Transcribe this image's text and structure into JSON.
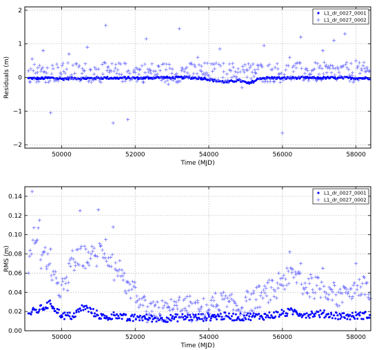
{
  "chart_data": [
    {
      "type": "scatter",
      "xlabel": "Time (MJD)",
      "ylabel": "Residuals (m)",
      "xlim": [
        49000,
        58400
      ],
      "ylim": [
        -2.1,
        2.1
      ],
      "x_ticks": [
        50000,
        52000,
        54000,
        56000,
        58000
      ],
      "x_tick_labels": [
        "50000",
        "52000",
        "54000",
        "56000",
        "58000"
      ],
      "y_ticks": [
        -2,
        -1,
        0,
        1,
        2
      ],
      "y_tick_labels": [
        "−2",
        "−1",
        "0",
        "1",
        "2"
      ],
      "grid": true,
      "legend_position": "top-right",
      "series": [
        {
          "name": "L1_dr_0027_0001",
          "marker": "dot",
          "color": "#0000ff",
          "x": [
            49100,
            49400,
            49700,
            50000,
            50300,
            50600,
            50900,
            51200,
            51500,
            51800,
            52100,
            52400,
            52700,
            53000,
            53300,
            53600,
            53900,
            54200,
            54500,
            54800,
            55100,
            55400,
            55700,
            56000,
            56300,
            56600,
            56900,
            57200,
            57500,
            57800,
            58100
          ],
          "y": [
            -0.02,
            -0.03,
            -0.01,
            -0.04,
            -0.02,
            -0.03,
            -0.02,
            -0.01,
            -0.02,
            -0.01,
            -0.02,
            -0.01,
            0.0,
            -0.01,
            0.0,
            -0.01,
            -0.03,
            -0.1,
            -0.14,
            -0.08,
            -0.18,
            -0.02,
            -0.01,
            -0.02,
            -0.01,
            -0.01,
            -0.02,
            -0.01,
            -0.02,
            -0.01,
            -0.02
          ]
        },
        {
          "name": "L1_dr_0027_0002",
          "marker": "plus",
          "color": "#6666ff",
          "x": [
            49100,
            49200,
            49500,
            49700,
            49900,
            50200,
            50500,
            50700,
            51000,
            51200,
            51400,
            51600,
            51800,
            52000,
            52300,
            52600,
            52900,
            53200,
            53400,
            53700,
            54000,
            54300,
            54600,
            54900,
            55200,
            55500,
            55800,
            56000,
            56200,
            56500,
            56800,
            57100,
            57400,
            57700,
            58000,
            58300
          ],
          "y": [
            0.2,
            0.55,
            0.8,
            -1.05,
            0.3,
            0.7,
            -0.1,
            0.9,
            0.25,
            1.55,
            -1.35,
            0.4,
            -1.25,
            0.15,
            1.15,
            0.1,
            -0.2,
            1.45,
            0.3,
            0.6,
            0.05,
            0.85,
            0.2,
            -0.3,
            0.4,
            0.95,
            0.3,
            -1.65,
            0.6,
            1.2,
            0.2,
            0.8,
            1.1,
            1.3,
            0.5,
            0.3
          ]
        }
      ]
    },
    {
      "type": "scatter",
      "xlabel": "Time (MJD)",
      "ylabel": "RMS (m)",
      "xlim": [
        49000,
        58400
      ],
      "ylim": [
        0.0,
        0.15
      ],
      "x_ticks": [
        50000,
        52000,
        54000,
        56000,
        58000
      ],
      "x_tick_labels": [
        "50000",
        "52000",
        "54000",
        "56000",
        "58000"
      ],
      "y_ticks": [
        0.0,
        0.02,
        0.04,
        0.06,
        0.08,
        0.1,
        0.12,
        0.14
      ],
      "y_tick_labels": [
        "0.00",
        "0.02",
        "0.04",
        "0.06",
        "0.08",
        "0.10",
        "0.12",
        "0.14"
      ],
      "grid": true,
      "legend_position": "top-right",
      "series": [
        {
          "name": "L1_dr_0027_0001",
          "marker": "dot",
          "color": "#0000ff",
          "x": [
            49100,
            49400,
            49700,
            50000,
            50300,
            50600,
            50900,
            51200,
            51500,
            51800,
            52100,
            52400,
            52700,
            53000,
            53300,
            53600,
            53900,
            54200,
            54500,
            54800,
            55100,
            55400,
            55700,
            56000,
            56300,
            56600,
            56900,
            57200,
            57500,
            57800,
            58100
          ],
          "y": [
            0.018,
            0.022,
            0.028,
            0.016,
            0.015,
            0.025,
            0.018,
            0.013,
            0.017,
            0.012,
            0.014,
            0.013,
            0.013,
            0.013,
            0.014,
            0.014,
            0.014,
            0.015,
            0.015,
            0.014,
            0.015,
            0.015,
            0.016,
            0.018,
            0.02,
            0.017,
            0.018,
            0.017,
            0.016,
            0.015,
            0.016
          ]
        },
        {
          "name": "L1_dr_0027_0002",
          "marker": "plus",
          "color": "#6666ff",
          "x": [
            49100,
            49200,
            49400,
            49700,
            49900,
            50200,
            50500,
            50800,
            51000,
            51200,
            51400,
            51700,
            52000,
            52300,
            52600,
            52900,
            53200,
            53500,
            53800,
            54100,
            54400,
            54700,
            55000,
            55300,
            55600,
            55900,
            56200,
            56500,
            56800,
            57100,
            57400,
            57700,
            58000,
            58300
          ],
          "y": [
            0.06,
            0.145,
            0.115,
            0.085,
            0.05,
            0.07,
            0.125,
            0.08,
            0.126,
            0.095,
            0.108,
            0.06,
            0.045,
            0.02,
            0.03,
            0.025,
            0.035,
            0.03,
            0.025,
            0.035,
            0.04,
            0.03,
            0.035,
            0.045,
            0.05,
            0.06,
            0.082,
            0.07,
            0.055,
            0.065,
            0.05,
            0.045,
            0.07,
            0.05
          ]
        }
      ]
    }
  ]
}
